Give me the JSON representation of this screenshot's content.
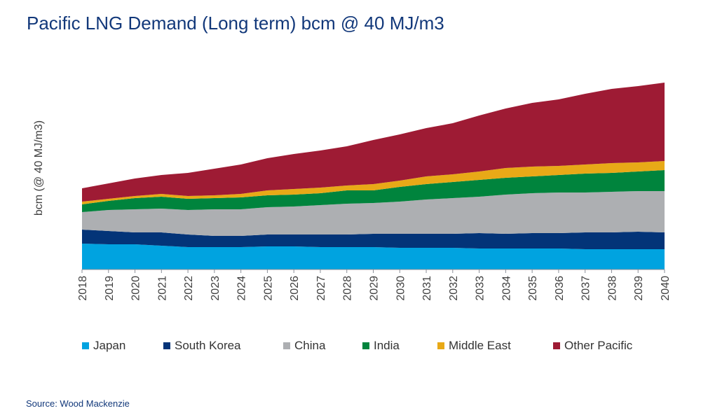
{
  "chart_data": {
    "type": "area",
    "stacked": true,
    "title": "Pacific LNG Demand (Long term) bcm @ 40 MJ/m3",
    "xlabel": "",
    "ylabel": "bcm (@ 40 MJ/m3)",
    "ylim": [
      0,
      870
    ],
    "grid": false,
    "legend_position": "bottom",
    "categories": [
      "2018",
      "2019",
      "2020",
      "2021",
      "2022",
      "2023",
      "2024",
      "2025",
      "2026",
      "2027",
      "2028",
      "2029",
      "2030",
      "2031",
      "2032",
      "2033",
      "2034",
      "2035",
      "2036",
      "2037",
      "2038",
      "2039",
      "2040"
    ],
    "series": [
      {
        "name": "Japan",
        "color": "#00a3e0",
        "values": [
          111,
          108,
          108,
          102,
          96,
          96,
          96,
          99,
          99,
          96,
          96,
          96,
          93,
          93,
          93,
          90,
          90,
          90,
          90,
          87,
          87,
          87,
          87
        ]
      },
      {
        "name": "South Korea",
        "color": "#033478",
        "values": [
          60,
          57,
          51,
          57,
          54,
          48,
          48,
          51,
          51,
          54,
          54,
          57,
          60,
          60,
          60,
          66,
          63,
          66,
          66,
          72,
          72,
          75,
          72
        ]
      },
      {
        "name": "China",
        "color": "#adafb2",
        "values": [
          75,
          90,
          99,
          102,
          105,
          114,
          114,
          117,
          120,
          126,
          132,
          132,
          138,
          147,
          153,
          156,
          168,
          171,
          174,
          171,
          174,
          174,
          177
        ]
      },
      {
        "name": "India",
        "color": "#00843d",
        "values": [
          33,
          39,
          48,
          51,
          48,
          48,
          51,
          51,
          51,
          51,
          57,
          54,
          63,
          66,
          69,
          72,
          72,
          72,
          75,
          81,
          81,
          84,
          90
        ]
      },
      {
        "name": "Middle East",
        "color": "#e8a917",
        "values": [
          12,
          9,
          9,
          12,
          12,
          12,
          15,
          21,
          24,
          24,
          21,
          27,
          27,
          33,
          33,
          36,
          42,
          42,
          39,
          39,
          42,
          39,
          39
        ]
      },
      {
        "name": "Other Pacific",
        "color": "#9e1b34",
        "values": [
          57,
          66,
          75,
          81,
          99,
          114,
          126,
          138,
          150,
          159,
          168,
          189,
          198,
          207,
          219,
          240,
          255,
          273,
          285,
          303,
          318,
          327,
          336
        ]
      }
    ],
    "source": "Source: Wood Mackenzie"
  }
}
